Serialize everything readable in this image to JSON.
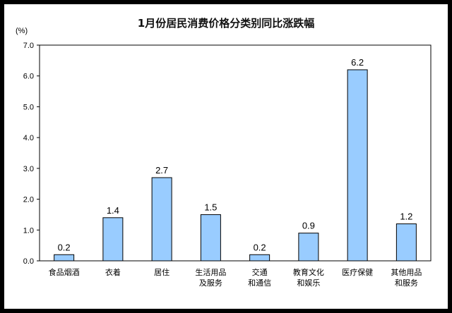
{
  "chart_data": {
    "type": "bar",
    "title": "1月份居民消费价格分类别同比涨跌幅",
    "unit": "(%)",
    "ylim": [
      0,
      7
    ],
    "yticks": [
      "0.0",
      "1.0",
      "2.0",
      "3.0",
      "4.0",
      "5.0",
      "6.0",
      "7.0"
    ],
    "grid": false,
    "categories": [
      [
        "食品烟酒"
      ],
      [
        "衣着"
      ],
      [
        "居住"
      ],
      [
        "生活用品",
        "及服务"
      ],
      [
        "交通",
        "和通信"
      ],
      [
        "教育文化",
        "和娱乐"
      ],
      [
        "医疗保健"
      ],
      [
        "其他用品",
        "和服务"
      ]
    ],
    "values": [
      0.2,
      1.4,
      2.7,
      1.5,
      0.2,
      0.9,
      6.2,
      1.2
    ],
    "value_labels": [
      "0.2",
      "1.4",
      "2.7",
      "1.5",
      "0.2",
      "0.9",
      "6.2",
      "1.2"
    ],
    "bar_color": "#99ccff",
    "bar_edge": "#000000"
  }
}
